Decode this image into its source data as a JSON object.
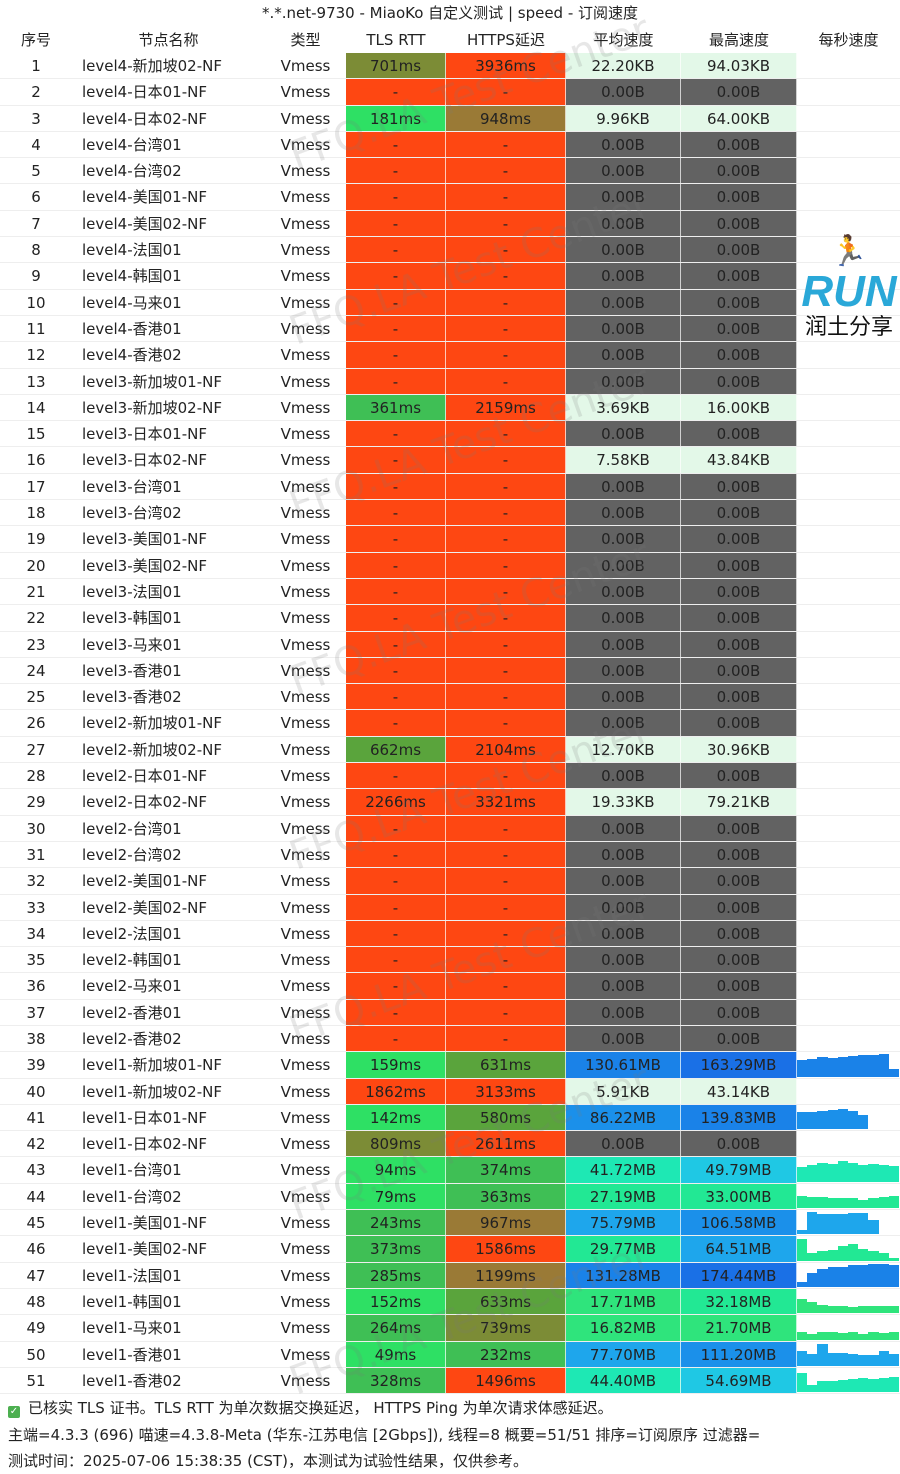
{
  "window_title": "*.*.net-9730 - MiaoKo 自定义测试 | speed - 订阅速度",
  "columns": [
    "序号",
    "节点名称",
    "类型",
    "TLS RTT",
    "HTTPS延迟",
    "平均速度",
    "最高速度",
    "每秒速度"
  ],
  "rows": [
    [
      1,
      "level4-新加坡02-NF",
      "Vmess",
      "701ms",
      "3936ms",
      "22.20KB",
      "94.03KB"
    ],
    [
      2,
      "level4-日本01-NF",
      "Vmess",
      "-",
      "-",
      "0.00B",
      "0.00B"
    ],
    [
      3,
      "level4-日本02-NF",
      "Vmess",
      "181ms",
      "948ms",
      "9.96KB",
      "64.00KB"
    ],
    [
      4,
      "level4-台湾01",
      "Vmess",
      "-",
      "-",
      "0.00B",
      "0.00B"
    ],
    [
      5,
      "level4-台湾02",
      "Vmess",
      "-",
      "-",
      "0.00B",
      "0.00B"
    ],
    [
      6,
      "level4-美国01-NF",
      "Vmess",
      "-",
      "-",
      "0.00B",
      "0.00B"
    ],
    [
      7,
      "level4-美国02-NF",
      "Vmess",
      "-",
      "-",
      "0.00B",
      "0.00B"
    ],
    [
      8,
      "level4-法国01",
      "Vmess",
      "-",
      "-",
      "0.00B",
      "0.00B"
    ],
    [
      9,
      "level4-韩国01",
      "Vmess",
      "-",
      "-",
      "0.00B",
      "0.00B"
    ],
    [
      10,
      "level4-马来01",
      "Vmess",
      "-",
      "-",
      "0.00B",
      "0.00B"
    ],
    [
      11,
      "level4-香港01",
      "Vmess",
      "-",
      "-",
      "0.00B",
      "0.00B"
    ],
    [
      12,
      "level4-香港02",
      "Vmess",
      "-",
      "-",
      "0.00B",
      "0.00B"
    ],
    [
      13,
      "level3-新加坡01-NF",
      "Vmess",
      "-",
      "-",
      "0.00B",
      "0.00B"
    ],
    [
      14,
      "level3-新加坡02-NF",
      "Vmess",
      "361ms",
      "2159ms",
      "3.69KB",
      "16.00KB"
    ],
    [
      15,
      "level3-日本01-NF",
      "Vmess",
      "-",
      "-",
      "0.00B",
      "0.00B"
    ],
    [
      16,
      "level3-日本02-NF",
      "Vmess",
      "-",
      "-",
      "7.58KB",
      "43.84KB"
    ],
    [
      17,
      "level3-台湾01",
      "Vmess",
      "-",
      "-",
      "0.00B",
      "0.00B"
    ],
    [
      18,
      "level3-台湾02",
      "Vmess",
      "-",
      "-",
      "0.00B",
      "0.00B"
    ],
    [
      19,
      "level3-美国01-NF",
      "Vmess",
      "-",
      "-",
      "0.00B",
      "0.00B"
    ],
    [
      20,
      "level3-美国02-NF",
      "Vmess",
      "-",
      "-",
      "0.00B",
      "0.00B"
    ],
    [
      21,
      "level3-法国01",
      "Vmess",
      "-",
      "-",
      "0.00B",
      "0.00B"
    ],
    [
      22,
      "level3-韩国01",
      "Vmess",
      "-",
      "-",
      "0.00B",
      "0.00B"
    ],
    [
      23,
      "level3-马来01",
      "Vmess",
      "-",
      "-",
      "0.00B",
      "0.00B"
    ],
    [
      24,
      "level3-香港01",
      "Vmess",
      "-",
      "-",
      "0.00B",
      "0.00B"
    ],
    [
      25,
      "level3-香港02",
      "Vmess",
      "-",
      "-",
      "0.00B",
      "0.00B"
    ],
    [
      26,
      "level2-新加坡01-NF",
      "Vmess",
      "-",
      "-",
      "0.00B",
      "0.00B"
    ],
    [
      27,
      "level2-新加坡02-NF",
      "Vmess",
      "662ms",
      "2104ms",
      "12.70KB",
      "30.96KB"
    ],
    [
      28,
      "level2-日本01-NF",
      "Vmess",
      "-",
      "-",
      "0.00B",
      "0.00B"
    ],
    [
      29,
      "level2-日本02-NF",
      "Vmess",
      "2266ms",
      "3321ms",
      "19.33KB",
      "79.21KB"
    ],
    [
      30,
      "level2-台湾01",
      "Vmess",
      "-",
      "-",
      "0.00B",
      "0.00B"
    ],
    [
      31,
      "level2-台湾02",
      "Vmess",
      "-",
      "-",
      "0.00B",
      "0.00B"
    ],
    [
      32,
      "level2-美国01-NF",
      "Vmess",
      "-",
      "-",
      "0.00B",
      "0.00B"
    ],
    [
      33,
      "level2-美国02-NF",
      "Vmess",
      "-",
      "-",
      "0.00B",
      "0.00B"
    ],
    [
      34,
      "level2-法国01",
      "Vmess",
      "-",
      "-",
      "0.00B",
      "0.00B"
    ],
    [
      35,
      "level2-韩国01",
      "Vmess",
      "-",
      "-",
      "0.00B",
      "0.00B"
    ],
    [
      36,
      "level2-马来01",
      "Vmess",
      "-",
      "-",
      "0.00B",
      "0.00B"
    ],
    [
      37,
      "level2-香港01",
      "Vmess",
      "-",
      "-",
      "0.00B",
      "0.00B"
    ],
    [
      38,
      "level2-香港02",
      "Vmess",
      "-",
      "-",
      "0.00B",
      "0.00B"
    ],
    [
      39,
      "level1-新加坡01-NF",
      "Vmess",
      "159ms",
      "631ms",
      "130.61MB",
      "163.29MB"
    ],
    [
      40,
      "level1-新加坡02-NF",
      "Vmess",
      "1862ms",
      "3133ms",
      "5.91KB",
      "43.14KB"
    ],
    [
      41,
      "level1-日本01-NF",
      "Vmess",
      "142ms",
      "580ms",
      "86.22MB",
      "139.83MB"
    ],
    [
      42,
      "level1-日本02-NF",
      "Vmess",
      "809ms",
      "2611ms",
      "0.00B",
      "0.00B"
    ],
    [
      43,
      "level1-台湾01",
      "Vmess",
      "94ms",
      "374ms",
      "41.72MB",
      "49.79MB"
    ],
    [
      44,
      "level1-台湾02",
      "Vmess",
      "79ms",
      "363ms",
      "27.19MB",
      "33.00MB"
    ],
    [
      45,
      "level1-美国01-NF",
      "Vmess",
      "243ms",
      "967ms",
      "75.79MB",
      "106.58MB"
    ],
    [
      46,
      "level1-美国02-NF",
      "Vmess",
      "373ms",
      "1586ms",
      "29.77MB",
      "64.51MB"
    ],
    [
      47,
      "level1-法国01",
      "Vmess",
      "285ms",
      "1199ms",
      "131.28MB",
      "174.44MB"
    ],
    [
      48,
      "level1-韩国01",
      "Vmess",
      "152ms",
      "633ms",
      "17.71MB",
      "32.18MB"
    ],
    [
      49,
      "level1-马来01",
      "Vmess",
      "264ms",
      "739ms",
      "16.82MB",
      "21.70MB"
    ],
    [
      50,
      "level1-香港01",
      "Vmess",
      "49ms",
      "232ms",
      "77.70MB",
      "111.20MB"
    ],
    [
      51,
      "level1-香港02",
      "Vmess",
      "328ms",
      "1496ms",
      "44.40MB",
      "54.69MB"
    ]
  ],
  "per_second": {
    "39": [
      0.7,
      0.75,
      0.8,
      0.78,
      0.82,
      0.85,
      0.88,
      0.9,
      0.95,
      0.3
    ],
    "41": [
      0.7,
      0.72,
      0.75,
      0.78,
      0.85,
      0.75,
      0.6,
      0,
      0,
      0
    ],
    "43": [
      0.6,
      0.7,
      0.8,
      0.75,
      0.85,
      0.8,
      0.7,
      0.75,
      0.7,
      0.65
    ],
    "44": [
      0.5,
      0.45,
      0.45,
      0.4,
      0.4,
      0.4,
      0.35,
      0.4,
      0.45,
      0.5
    ],
    "45": [
      0.2,
      0.95,
      0.85,
      0.85,
      0.85,
      0.9,
      0.9,
      0.6,
      0,
      0
    ],
    "46": [
      0.9,
      0.3,
      0.4,
      0.45,
      0.6,
      0.7,
      0.5,
      0.4,
      0.3,
      0.1
    ],
    "47": [
      0.2,
      0.6,
      0.75,
      0.85,
      0.85,
      0.9,
      0.9,
      0.95,
      0.95,
      0.9
    ],
    "48": [
      0.6,
      0.45,
      0.35,
      0.3,
      0.3,
      0.25,
      0.3,
      0.3,
      0.3,
      0.3
    ],
    "49": [
      0.3,
      0.25,
      0.3,
      0.3,
      0.28,
      0.3,
      0.25,
      0.3,
      0.28,
      0.3
    ],
    "50": [
      0.6,
      0.5,
      0.9,
      0.55,
      0.55,
      0.5,
      0.45,
      0.45,
      0.6,
      0.5
    ],
    "51": [
      0.8,
      0.3,
      0.45,
      0.45,
      0.5,
      0.55,
      0.6,
      0.55,
      0.6,
      0.65
    ]
  },
  "colors": {
    "fail": "#fe4712",
    "zero": "#626262",
    "kb": "#e3f8e8"
  },
  "watermark": "FFQ.LA Test Center",
  "logo": {
    "text": "RUN",
    "subtitle": "润土分享"
  },
  "footer": {
    "line1": "已核实 TLS 证书。TLS RTT 为单次数据交换延迟， HTTPS Ping 为单次请求体感延迟。",
    "line2": "主端=4.3.3 (696) 喵速=4.3.8-Meta (华东-江苏电信 [2Gbps]), 线程=8 概要=51/51 排序=订阅原序 过滤器=",
    "line3": "测试时间：2025-07-06 15:38:35 (CST)，本测试为试验性结果，仅供参考。"
  }
}
